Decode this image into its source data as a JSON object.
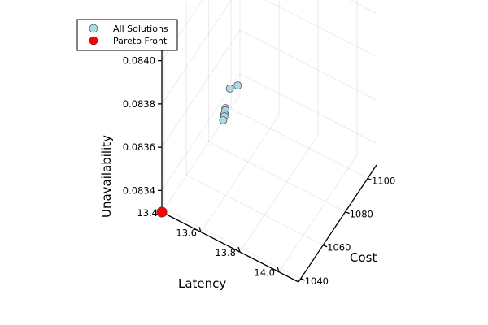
{
  "chart_data": {
    "type": "scatter",
    "projection": "3d",
    "axes": {
      "x": {
        "label": "Latency",
        "range": [
          13.4,
          14.1
        ],
        "ticks": [
          13.4,
          13.6,
          13.8,
          14.0
        ],
        "tick_labels": [
          "13.4",
          "13.6",
          "13.8",
          "14.0"
        ]
      },
      "y": {
        "label": "Cost",
        "range": [
          1038,
          1108
        ],
        "ticks": [
          1040,
          1060,
          1080,
          1100
        ],
        "tick_labels": [
          "1040",
          "1060",
          "1080",
          "1100"
        ]
      },
      "z": {
        "label": "Unavailability",
        "range": [
          0.0833,
          0.0841
        ],
        "ticks": [
          0.0834,
          0.0836,
          0.0838,
          0.084
        ],
        "tick_labels": [
          "0.0834",
          "0.0836",
          "0.0838",
          "0.0840"
        ]
      }
    },
    "grid": true,
    "legend_position": "top-left",
    "series": [
      {
        "name": "All Solutions",
        "color": "#add8e6",
        "points": [
          {
            "x": 13.4,
            "y": 1106,
            "z": 0.08336
          },
          {
            "x": 13.4,
            "y": 1099,
            "z": 0.0834
          },
          {
            "x": 13.4,
            "y": 1095,
            "z": 0.08334
          },
          {
            "x": 13.4,
            "y": 1095,
            "z": 0.08333
          },
          {
            "x": 13.4,
            "y": 1094,
            "z": 0.08332
          },
          {
            "x": 13.4,
            "y": 1094,
            "z": 0.08331
          },
          {
            "x": 13.4,
            "y": 1093,
            "z": 0.0833
          }
        ]
      },
      {
        "name": "Pareto Front",
        "color": "#ff0000",
        "points": [
          {
            "x": 13.4,
            "y": 1038,
            "z": 0.0833
          }
        ]
      }
    ]
  }
}
